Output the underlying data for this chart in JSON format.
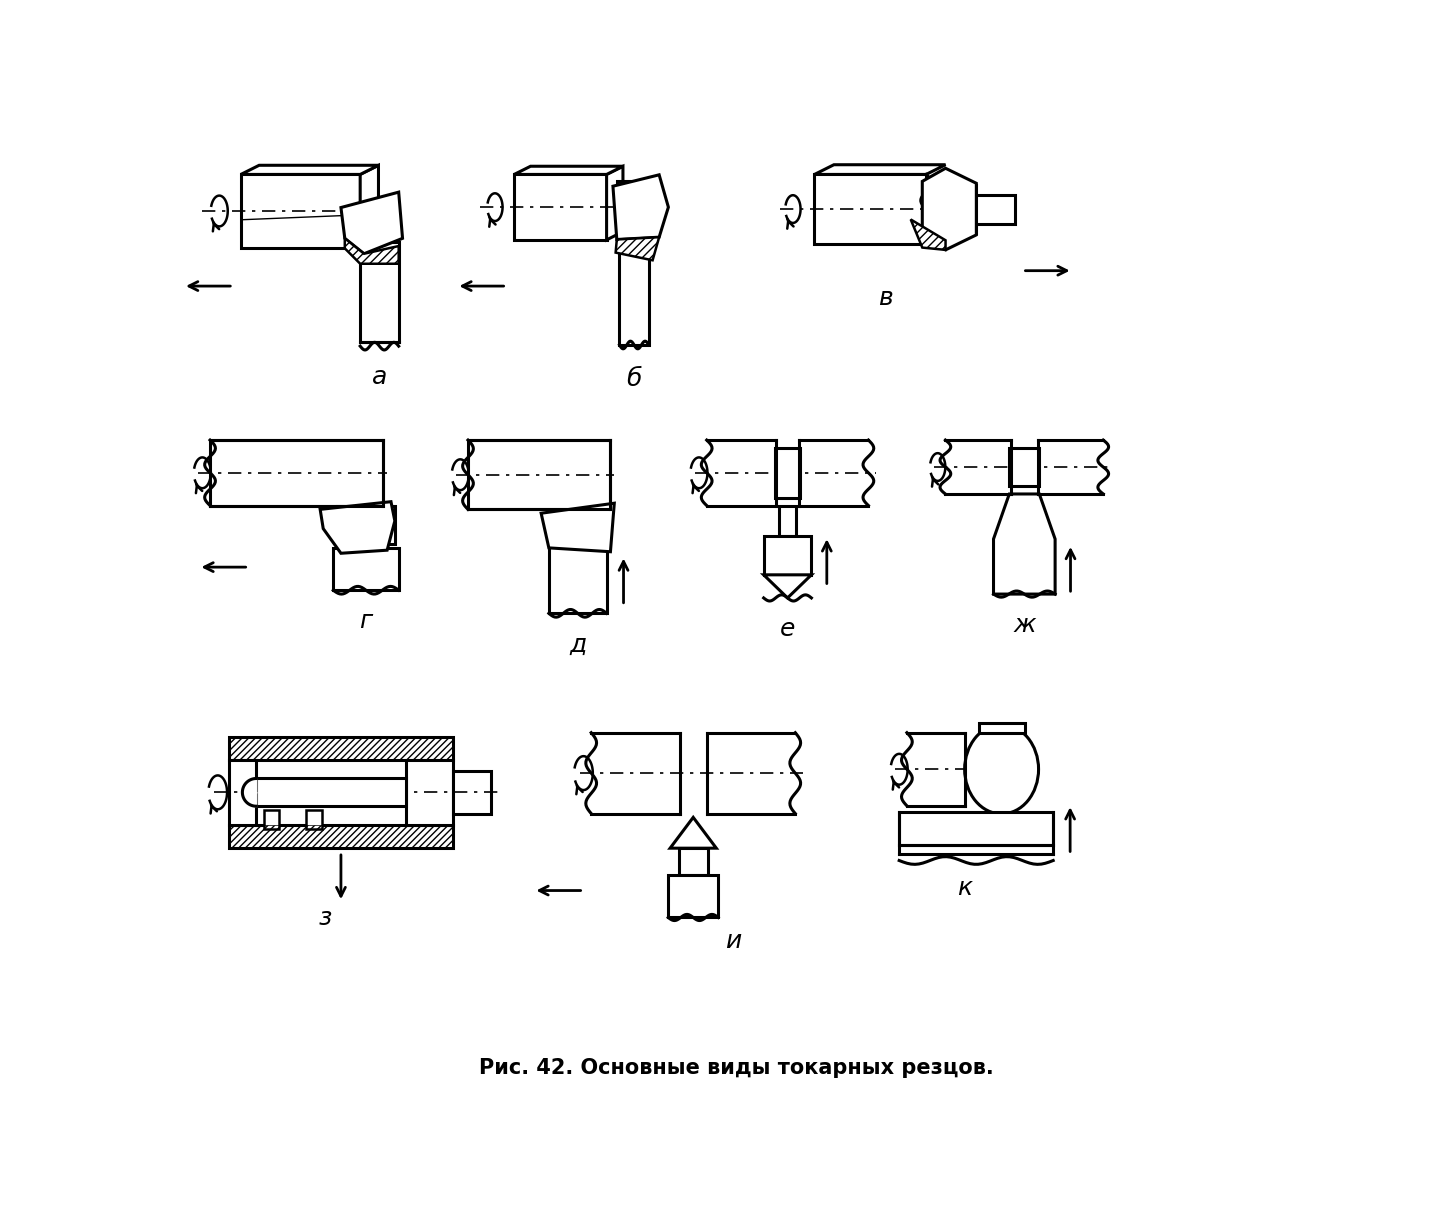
{
  "title": "Рис. 42. Основные виды токарных резцов.",
  "background_color": "#ffffff",
  "lc": "#000000",
  "lw": 1.8,
  "lw_thick": 2.2,
  "figsize": [
    14.36,
    12.29
  ],
  "dpi": 100,
  "labels": [
    "а",
    "б",
    "в",
    "г",
    "д",
    "е",
    "ж",
    "з",
    "и",
    "к"
  ],
  "label_fontsize": 18
}
